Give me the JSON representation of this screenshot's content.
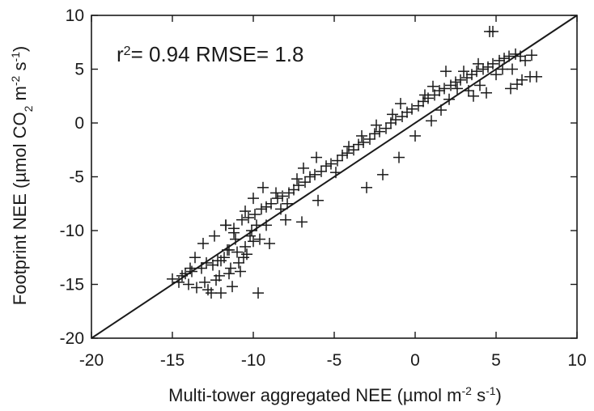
{
  "chart_data": {
    "type": "scatter",
    "title": "",
    "xlabel": "Multi-tower aggregated NEE (µmol m⁻² s⁻¹)",
    "xlabel_parts": {
      "main": "Multi-tower aggregated NEE (",
      "mu": "µ",
      "mol": "mol m",
      "sup1": "-2",
      "s": " s",
      "sup2": "-1",
      "close": ")"
    },
    "ylabel": "Footprint NEE (µmol CO₂ m⁻² s⁻¹)",
    "ylabel_parts": {
      "main": "Footprint  NEE (",
      "mu": "µ",
      "mol": "mol CO",
      "sub": "2",
      "m": " m",
      "sup1": "-2",
      "s": " s",
      "sup2": "-1",
      "close": ")"
    },
    "annotation": "r²= 0.94 RMSE= 1.8",
    "annotation_parts": {
      "r": "r",
      "sup": "2",
      "rest": "= 0.94 RMSE= 1.8"
    },
    "xlim": [
      -20,
      10
    ],
    "ylim": [
      -20,
      10
    ],
    "x_ticks": [
      -20,
      -15,
      -10,
      -5,
      0,
      5,
      10
    ],
    "x_tick_labels": [
      "-20",
      "-15",
      "-10",
      "-5",
      "0",
      "5",
      "10"
    ],
    "y_ticks": [
      -20,
      -15,
      -10,
      -5,
      0,
      5,
      10
    ],
    "y_tick_labels": [
      "-20",
      "-15",
      "-10",
      "-5",
      "0",
      "5",
      "10"
    ],
    "marker": "plus",
    "reference_line": "1:1",
    "grid": false,
    "series": [
      {
        "x": [
          -15,
          -14.6,
          -14.2,
          -14,
          -13.8,
          -13.5,
          -13.2,
          -13,
          -12.8,
          -12.5,
          -12.3,
          -12,
          -11.8,
          -11.5,
          -11.3,
          -11,
          -10.8,
          -10.5,
          -10.2,
          -10,
          -9.8,
          -13.6,
          -12.9,
          -12.2,
          -11.6,
          -11.1,
          -10.6,
          -10.1,
          -13.1,
          -12.4,
          -11.7,
          -11.2,
          -10.7,
          -10.3,
          -9.9,
          -9.5,
          -9.2,
          -8.9,
          -8.5,
          -8.2,
          -7.8,
          -7.5,
          -7.2,
          -6.8,
          -6.5,
          -6.2,
          -5.8,
          -5.5,
          -5.2,
          -4.8,
          -4.5,
          -4.2,
          -3.8,
          -3.5,
          -3.2,
          -2.8,
          -2.5,
          -2.2,
          -1.8,
          -1.5,
          -1.2,
          -0.8,
          -0.5,
          -0.2,
          0.2,
          0.5,
          0.8,
          1.2,
          1.5,
          1.8,
          2.2,
          2.5,
          2.8,
          3.2,
          3.5,
          3.8,
          4.2,
          4.5,
          4.8,
          5.2,
          5.5,
          5.8,
          6.2,
          6.5,
          6.8,
          7.2,
          7.5,
          4.6,
          4.8,
          3.3,
          4,
          5,
          6,
          6.6,
          7.1,
          3.6,
          2.6,
          1.9,
          2.1,
          -11.5,
          -11.7,
          -12,
          -11.2,
          -10.5,
          -10.9,
          -9.6,
          -9.2,
          -10,
          -9.4,
          -8.6,
          -7.9,
          -8.3,
          -7.3,
          -6.9,
          -6.1,
          -4.9,
          -4.1,
          -3.3,
          -2.4,
          -1.4,
          -0.9,
          0.6,
          1.1,
          1.6,
          3,
          3.9,
          4.4,
          5.4,
          5.9,
          6.3,
          -13.9,
          -14.4,
          -12.6,
          -12.1,
          -11.4,
          -10.4,
          -9.7,
          -9,
          -8,
          -7,
          -6,
          -3,
          -2,
          -1,
          0,
          1
        ],
        "y": [
          -14.5,
          -14.8,
          -14,
          -15,
          -13.8,
          -15.3,
          -13.5,
          -14.8,
          -15.5,
          -13.2,
          -14.6,
          -15.8,
          -12.5,
          -14,
          -15.2,
          -12,
          -13.8,
          -11.5,
          -10.5,
          -11,
          -9.5,
          -12.5,
          -13,
          -12.8,
          -11.8,
          -10.8,
          -12.5,
          -10,
          -11.2,
          -10.5,
          -9.5,
          -9.8,
          -9,
          -8.8,
          -8.5,
          -8,
          -7.8,
          -7.5,
          -7,
          -6.8,
          -6.5,
          -6.2,
          -5.8,
          -5.5,
          -5,
          -4.8,
          -4.5,
          -4,
          -3.8,
          -3.5,
          -3,
          -2.8,
          -2.5,
          -2,
          -1.8,
          -1.5,
          -1,
          -0.8,
          -0.5,
          0,
          0.3,
          0.6,
          1,
          1.3,
          1.6,
          2,
          2.3,
          2.6,
          3,
          3.2,
          3.5,
          3.8,
          4,
          4.2,
          4.5,
          4.8,
          5,
          5.2,
          5.5,
          5.8,
          6,
          6.2,
          6.4,
          6.2,
          5.8,
          6.3,
          4.3,
          8.5,
          8.5,
          3,
          3.5,
          4.5,
          5,
          4,
          4.3,
          2.5,
          3.2,
          4.8,
          2.2,
          -11.8,
          -9.5,
          -12.8,
          -10.2,
          -8.2,
          -13,
          -10.8,
          -9.5,
          -7,
          -6,
          -6.5,
          -7.5,
          -8,
          -5.2,
          -4.2,
          -3.2,
          -4.6,
          -2.2,
          -1.2,
          -0.2,
          0.8,
          1.8,
          2.6,
          3.4,
          1.2,
          4.8,
          5.5,
          2.8,
          5,
          3.2,
          3.6,
          -13.5,
          -14.2,
          -15.8,
          -14.2,
          -13.5,
          -12.2,
          -15.8,
          -11.2,
          -9,
          -9.2,
          -7.2,
          -6,
          -4.8,
          -3.2,
          -1.2,
          0.2
        ]
      }
    ]
  }
}
